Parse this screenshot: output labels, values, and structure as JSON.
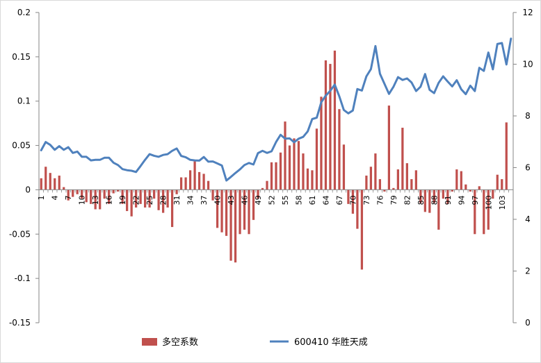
{
  "chart_data": {
    "type": "bar+line",
    "title": "",
    "legend": {
      "placement": "bottom",
      "entries": [
        {
          "label": "多空系数",
          "type": "bar",
          "color": "#c0504d"
        },
        {
          "label": "600410 华胜天成",
          "type": "line",
          "color": "#4f81bd"
        }
      ]
    },
    "x_tick_labels": [
      "1",
      "4",
      "7",
      "10",
      "13",
      "16",
      "19",
      "22",
      "25",
      "28",
      "31",
      "34",
      "37",
      "40",
      "43",
      "46",
      "49",
      "52",
      "55",
      "58",
      "61",
      "64",
      "67",
      "70",
      "73",
      "76",
      "79",
      "82",
      "85",
      "88",
      "91",
      "94",
      "97",
      "100",
      "103"
    ],
    "x_tick_every": 3,
    "x_count": 105,
    "y_left": {
      "min": -0.15,
      "max": 0.2,
      "ticks": [
        "-0.15",
        "-0.1",
        "-0.05",
        "0",
        "0.05",
        "0.1",
        "0.15",
        "0.2"
      ]
    },
    "y_right": {
      "min": 0,
      "max": 12,
      "ticks": [
        "0",
        "2",
        "4",
        "6",
        "8",
        "10",
        "12"
      ]
    },
    "series": [
      {
        "name": "多空系数",
        "type": "bar",
        "axis": "left",
        "color": "#c0504d",
        "values": [
          0.013,
          0.026,
          0.019,
          0.013,
          0.016,
          0.003,
          -0.012,
          -0.008,
          -0.005,
          -0.01,
          -0.014,
          -0.016,
          -0.022,
          -0.022,
          -0.01,
          -0.016,
          -0.004,
          -0.002,
          -0.016,
          -0.024,
          -0.03,
          -0.02,
          -0.016,
          -0.02,
          -0.02,
          -0.01,
          -0.023,
          -0.026,
          -0.02,
          -0.042,
          -0.005,
          0.014,
          0.014,
          0.022,
          0.032,
          0.02,
          0.018,
          0.01,
          -0.012,
          -0.043,
          -0.048,
          -0.052,
          -0.08,
          -0.082,
          -0.05,
          -0.045,
          -0.05,
          -0.034,
          -0.01,
          0.002,
          0.01,
          0.031,
          0.031,
          0.042,
          0.077,
          0.05,
          0.058,
          0.055,
          0.041,
          0.024,
          0.022,
          0.069,
          0.105,
          0.146,
          0.142,
          0.157,
          0.091,
          0.051,
          -0.016,
          -0.027,
          -0.044,
          -0.09,
          0.016,
          0.026,
          0.041,
          0.012,
          -0.002,
          0.095,
          0.002,
          0.023,
          0.07,
          0.03,
          0.012,
          0.022,
          -0.015,
          -0.025,
          -0.026,
          -0.015,
          -0.045,
          -0.01,
          -0.016,
          -0.002,
          0.023,
          0.021,
          0.006,
          -0.002,
          -0.05,
          0.004,
          -0.05,
          -0.045,
          -0.01,
          0.017,
          0.012,
          0.076,
          0.0
        ]
      },
      {
        "name": "600410 华胜天成",
        "type": "line",
        "axis": "right",
        "color": "#4f81bd",
        "values": [
          6.67,
          6.99,
          6.88,
          6.69,
          6.83,
          6.69,
          6.79,
          6.57,
          6.62,
          6.42,
          6.42,
          6.28,
          6.3,
          6.3,
          6.38,
          6.38,
          6.19,
          6.1,
          5.94,
          5.9,
          5.88,
          5.83,
          6.06,
          6.3,
          6.52,
          6.46,
          6.42,
          6.49,
          6.52,
          6.65,
          6.74,
          6.45,
          6.4,
          6.3,
          6.28,
          6.27,
          6.41,
          6.23,
          6.24,
          6.16,
          6.08,
          5.5,
          5.64,
          5.79,
          5.93,
          6.1,
          6.18,
          6.12,
          6.56,
          6.65,
          6.57,
          6.63,
          6.99,
          7.27,
          7.12,
          7.13,
          6.98,
          7.12,
          7.19,
          7.4,
          7.88,
          7.93,
          8.53,
          8.78,
          8.97,
          9.21,
          8.76,
          8.23,
          8.1,
          8.21,
          9.04,
          8.98,
          9.53,
          9.81,
          10.7,
          9.63,
          9.24,
          8.85,
          9.13,
          9.5,
          9.39,
          9.45,
          9.29,
          8.96,
          9.13,
          9.62,
          9.01,
          8.88,
          9.28,
          9.53,
          9.33,
          9.14,
          9.38,
          9.03,
          8.84,
          9.17,
          8.96,
          9.86,
          9.74,
          10.45,
          9.8,
          10.78,
          10.82,
          9.99,
          10.99
        ]
      }
    ]
  }
}
